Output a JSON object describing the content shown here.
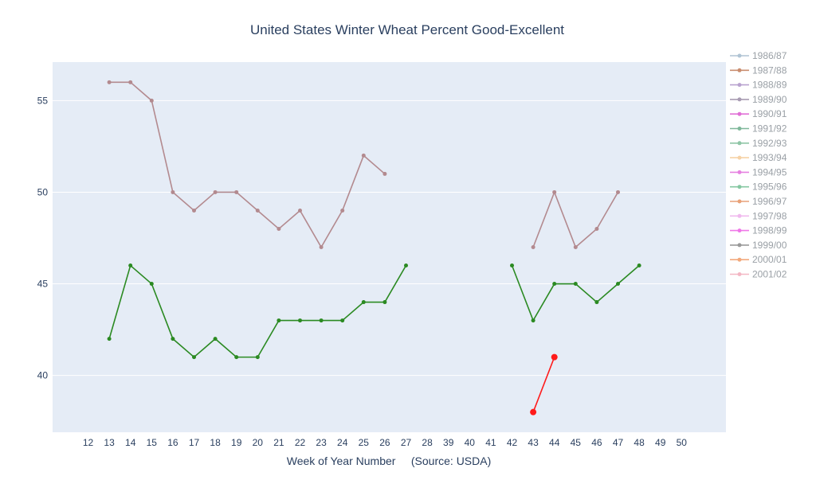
{
  "chart_data": {
    "type": "line",
    "title": "United States Winter Wheat Percent Good-Excellent",
    "xlabel": "Week of Year Number     (Source: USDA)",
    "ylabel": "",
    "categories": [
      "12",
      "13",
      "14",
      "15",
      "16",
      "17",
      "18",
      "19",
      "20",
      "21",
      "22",
      "23",
      "24",
      "25",
      "26",
      "27",
      "28",
      "39",
      "40",
      "41",
      "42",
      "43",
      "44",
      "45",
      "46",
      "47",
      "48",
      "49",
      "50"
    ],
    "ylim": [
      36.9,
      57.1
    ],
    "yticks": [
      40,
      45,
      50,
      55
    ],
    "grid": true,
    "legend_position": "right",
    "legend": [
      {
        "name": "1986/87",
        "color": "#b0c4d4"
      },
      {
        "name": "1987/88",
        "color": "#c98d6f"
      },
      {
        "name": "1988/89",
        "color": "#b9a3cf"
      },
      {
        "name": "1989/90",
        "color": "#a89bb2"
      },
      {
        "name": "1990/91",
        "color": "#e070d6"
      },
      {
        "name": "1991/92",
        "color": "#7fb89a"
      },
      {
        "name": "1992/93",
        "color": "#8fc6a6"
      },
      {
        "name": "1993/94",
        "color": "#f6d2a6"
      },
      {
        "name": "1994/95",
        "color": "#e681e0"
      },
      {
        "name": "1995/96",
        "color": "#86c8a2"
      },
      {
        "name": "1996/97",
        "color": "#e8a178"
      },
      {
        "name": "1997/98",
        "color": "#f0b9ee"
      },
      {
        "name": "1998/99",
        "color": "#ef77e8"
      },
      {
        "name": "1999/00",
        "color": "#9a9a9a"
      },
      {
        "name": "2000/01",
        "color": "#f2a97c"
      },
      {
        "name": "2001/02",
        "color": "#f3b7c4"
      }
    ],
    "series": [
      {
        "color": "#b38a8f",
        "marker_size": 2.5,
        "segments": [
          [
            [
              "13",
              56
            ],
            [
              "14",
              56
            ],
            [
              "15",
              55
            ],
            [
              "16",
              50
            ],
            [
              "17",
              49
            ],
            [
              "18",
              50
            ],
            [
              "19",
              50
            ],
            [
              "20",
              49
            ],
            [
              "21",
              48
            ],
            [
              "22",
              49
            ],
            [
              "23",
              47
            ],
            [
              "24",
              49
            ],
            [
              "25",
              52
            ],
            [
              "26",
              51
            ]
          ],
          [
            [
              "43",
              47
            ],
            [
              "44",
              50
            ],
            [
              "45",
              47
            ],
            [
              "46",
              48
            ],
            [
              "47",
              50
            ]
          ]
        ]
      },
      {
        "color": "#2b8a22",
        "marker_size": 2.5,
        "segments": [
          [
            [
              "13",
              42
            ],
            [
              "14",
              46
            ],
            [
              "15",
              45
            ],
            [
              "16",
              42
            ],
            [
              "17",
              41
            ],
            [
              "18",
              42
            ],
            [
              "19",
              41
            ],
            [
              "20",
              41
            ],
            [
              "21",
              43
            ],
            [
              "22",
              43
            ],
            [
              "23",
              43
            ],
            [
              "24",
              43
            ],
            [
              "25",
              44
            ],
            [
              "26",
              44
            ],
            [
              "27",
              46
            ]
          ],
          [
            [
              "42",
              46
            ],
            [
              "43",
              43
            ],
            [
              "44",
              45
            ],
            [
              "45",
              45
            ],
            [
              "46",
              44
            ],
            [
              "47",
              45
            ],
            [
              "48",
              46
            ]
          ]
        ]
      },
      {
        "color": "#ff1a1a",
        "marker_size": 4,
        "segments": [
          [
            [
              "43",
              38
            ],
            [
              "44",
              41
            ]
          ]
        ]
      }
    ]
  }
}
